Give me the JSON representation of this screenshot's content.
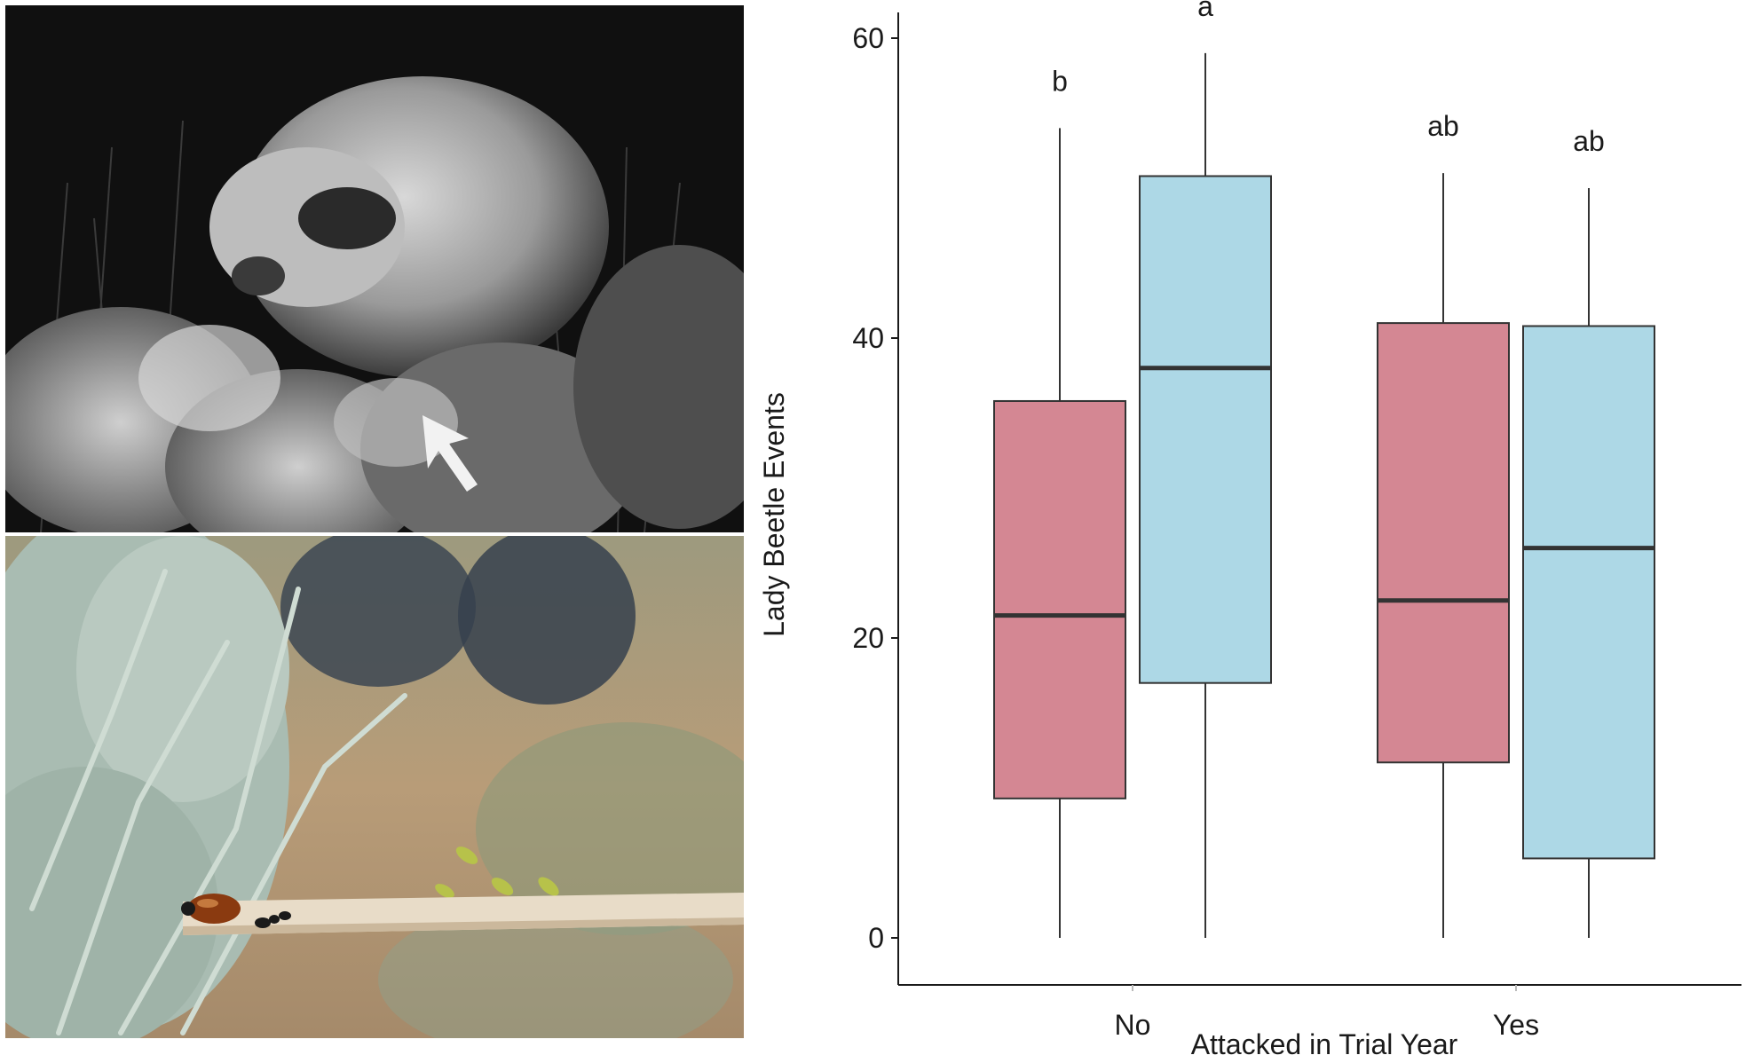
{
  "panels": {
    "top_photo": {
      "kind": "night camera-trap photo",
      "icon": "arrow-icon"
    },
    "bottom_photo": {
      "kind": "sagebrush with lady beetle and ant on wooden stick"
    }
  },
  "chart_data": {
    "type": "box",
    "xlabel": "Attacked in Trial Year",
    "ylabel": "Lady Beetle Events",
    "ylim": [
      0,
      60
    ],
    "yticks": [
      0,
      20,
      40,
      60
    ],
    "categories": [
      "No",
      "Yes"
    ],
    "grid": false,
    "series": [
      {
        "color": "#d48793",
        "boxes": [
          {
            "category": "No",
            "min": 0,
            "q1": 9.3,
            "median": 21.5,
            "q3": 35.8,
            "max": 54,
            "label": "b"
          },
          {
            "category": "Yes",
            "min": 0,
            "q1": 11.7,
            "median": 22.5,
            "q3": 41,
            "max": 51,
            "label": "ab"
          }
        ]
      },
      {
        "color": "#add8e6",
        "boxes": [
          {
            "category": "No",
            "min": 0,
            "q1": 17,
            "median": 38,
            "q3": 50.8,
            "max": 59,
            "label": "a"
          },
          {
            "category": "Yes",
            "min": 0,
            "q1": 5.3,
            "median": 26,
            "q3": 40.8,
            "max": 50,
            "label": "ab"
          }
        ]
      }
    ]
  }
}
